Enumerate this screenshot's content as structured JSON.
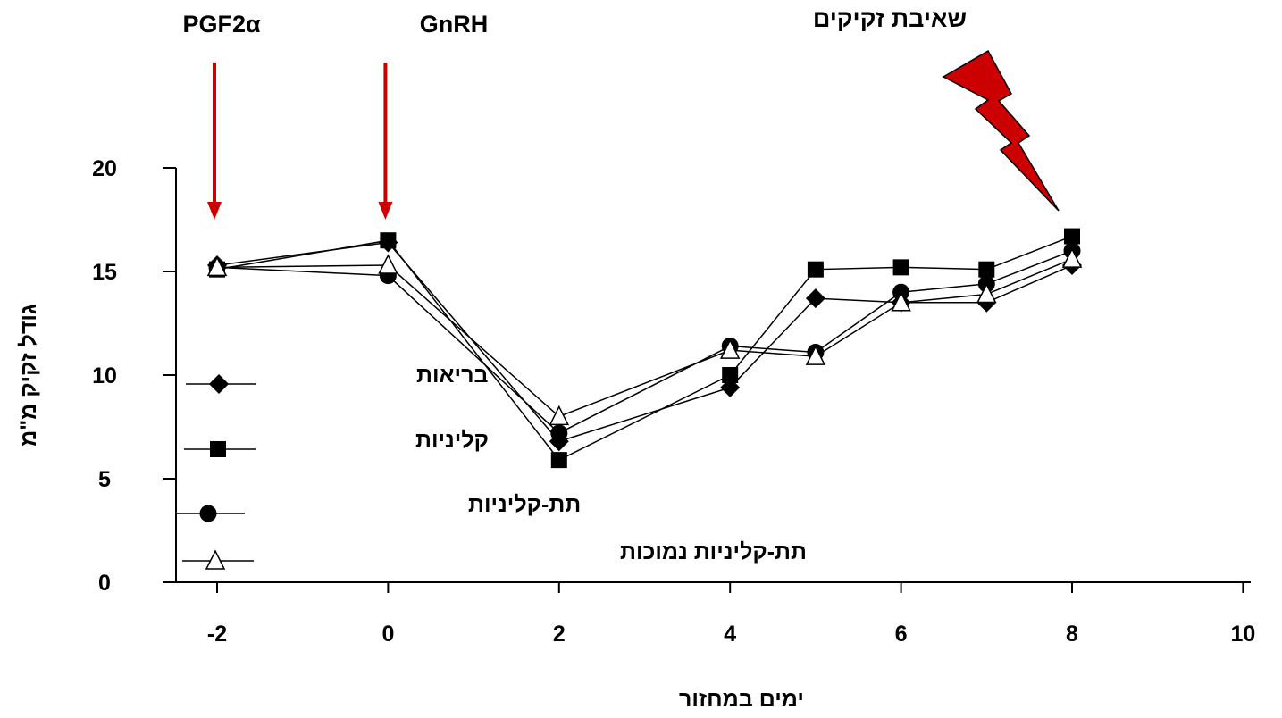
{
  "colors": {
    "line": "#000000",
    "arrow": "#cc0000",
    "bolt": "#cc0000",
    "background": "#ffffff"
  },
  "chart_data": {
    "type": "line",
    "xlabel": "ימים במחזור",
    "ylabel": "גודל זקיק מ\"מ",
    "xlim": [
      -2.6,
      10
    ],
    "ylim": [
      0,
      20
    ],
    "x_ticks": [
      -2,
      0,
      2,
      4,
      6,
      8,
      10
    ],
    "y_ticks": [
      0,
      5,
      10,
      15,
      20
    ],
    "x_tick_labels": [
      "-2",
      "0",
      "2",
      "4",
      "6",
      "8",
      "10"
    ],
    "y_tick_labels": [
      "0",
      "5",
      "10",
      "15",
      "20"
    ],
    "grid": false,
    "legend_position": "left-bottom",
    "series": [
      {
        "name": "בריאות",
        "marker": "diamond",
        "x": [
          -2,
          0,
          2,
          4,
          5,
          6,
          7,
          8
        ],
        "y": [
          15.3,
          16.4,
          6.8,
          9.4,
          13.7,
          13.5,
          13.5,
          15.3
        ]
      },
      {
        "name": "קליניות",
        "marker": "square",
        "x": [
          -2,
          0,
          2,
          4,
          5,
          6,
          7,
          8
        ],
        "y": [
          15.1,
          16.5,
          5.9,
          10.0,
          15.1,
          15.2,
          15.1,
          16.7
        ]
      },
      {
        "name": "תת-קליניות",
        "marker": "circle",
        "x": [
          -2,
          0,
          2,
          4,
          5,
          6,
          7,
          8
        ],
        "y": [
          15.2,
          14.8,
          7.2,
          11.4,
          11.1,
          14.0,
          14.4,
          16.0
        ]
      },
      {
        "name": "תת-קליניות נמוכות",
        "marker": "triangle",
        "x": [
          -2,
          0,
          2,
          4,
          5,
          6,
          7,
          8
        ],
        "y": [
          15.2,
          15.3,
          8.0,
          11.2,
          10.9,
          13.5,
          13.9,
          15.6
        ]
      }
    ],
    "annotations": [
      {
        "text": "PGF2α",
        "x": -2,
        "type": "arrow"
      },
      {
        "text": "GnRH",
        "x": 0,
        "type": "arrow"
      },
      {
        "text": "שאיבת זקיקים",
        "x": 8,
        "type": "lightning"
      }
    ]
  }
}
